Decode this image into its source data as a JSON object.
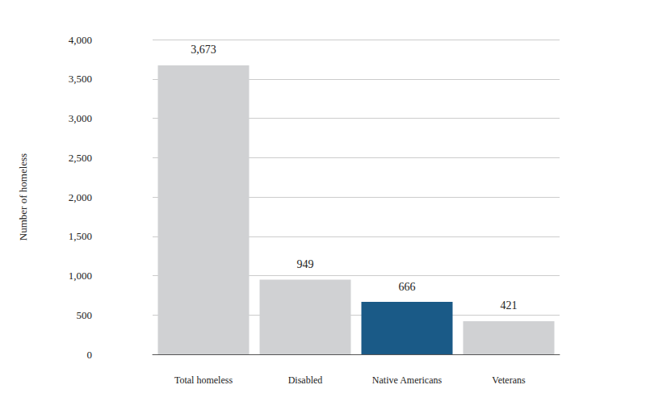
{
  "chart_data": {
    "type": "bar",
    "categories": [
      "Total homeless",
      "Disabled",
      "Native Americans",
      "Veterans"
    ],
    "values": [
      3673,
      949,
      666,
      421
    ],
    "value_labels": [
      "3,673",
      "949",
      "666",
      "421"
    ],
    "colors": [
      "#d0d1d3",
      "#d0d1d3",
      "#1a5a87",
      "#d0d1d3"
    ],
    "ylabel": "Number of homeless",
    "ylim": [
      0,
      4000
    ],
    "yticks": [
      0,
      500,
      {
        "value": 1000,
        "label": "1,000"
      },
      {
        "value": 1500,
        "label": "1,500"
      },
      {
        "value": 2000,
        "label": "2,000"
      },
      {
        "value": 2500,
        "label": "2,500"
      },
      {
        "value": 3000,
        "label": "3,000"
      },
      {
        "value": 3500,
        "label": "3,500"
      },
      {
        "value": 4000,
        "label": "4,000"
      }
    ],
    "grid": true,
    "data_labels": true
  }
}
